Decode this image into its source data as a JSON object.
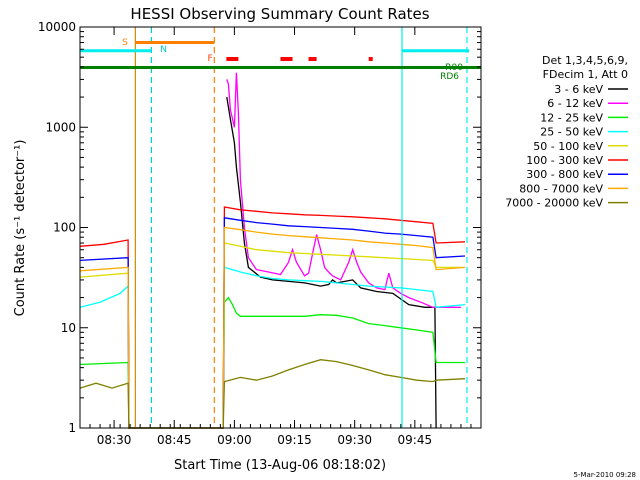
{
  "chart_data": {
    "type": "line",
    "title": "HESSI Observing Summary Count Rates",
    "xlabel": "Start Time (13-Aug-06 08:18:02)",
    "ylabel": "Count Rate (s⁻¹ detector⁻¹)",
    "yscale": "log",
    "ylim": [
      1,
      10000
    ],
    "xlim_minutes": [
      0,
      100
    ],
    "x_ticks": [
      "08:30",
      "08:45",
      "09:00",
      "09:15",
      "09:30",
      "09:45"
    ],
    "y_ticks": [
      "1",
      "10",
      "100",
      "1000",
      "10000"
    ],
    "legend_header": [
      "Det 1,3,4,5,6,9,",
      "FDecim 1, Att 0"
    ],
    "timestamp": "5-Mar-2010 09:28",
    "series": [
      {
        "name": "3 - 6 keV",
        "color": "#000000",
        "points": [
          [
            36.6,
            2000
          ],
          [
            37.5,
            1200
          ],
          [
            38.5,
            700
          ],
          [
            39,
            400
          ],
          [
            40,
            180
          ],
          [
            41,
            70
          ],
          [
            42,
            40
          ],
          [
            45,
            32
          ],
          [
            48,
            30
          ],
          [
            52,
            29
          ],
          [
            56,
            28
          ],
          [
            60,
            26
          ],
          [
            62,
            27
          ],
          [
            63,
            30
          ],
          [
            64,
            28
          ],
          [
            68,
            30
          ],
          [
            70,
            25
          ],
          [
            74,
            23
          ],
          [
            78,
            22
          ],
          [
            82,
            17
          ],
          [
            86,
            16
          ],
          [
            88.5,
            16
          ],
          [
            88.8,
            1
          ]
        ]
      },
      {
        "name": "6 - 12 keV",
        "color": "#ff00ff",
        "points": [
          [
            36.6,
            3000
          ],
          [
            37,
            2700
          ],
          [
            37.5,
            1500
          ],
          [
            38.5,
            1000
          ],
          [
            39,
            3500
          ],
          [
            39.5,
            1400
          ],
          [
            40,
            300
          ],
          [
            41,
            100
          ],
          [
            42,
            50
          ],
          [
            44,
            38
          ],
          [
            47,
            36
          ],
          [
            50,
            34
          ],
          [
            52,
            45
          ],
          [
            53,
            60
          ],
          [
            54,
            45
          ],
          [
            56,
            33
          ],
          [
            57,
            35
          ],
          [
            58,
            55
          ],
          [
            59,
            85
          ],
          [
            60,
            60
          ],
          [
            61,
            40
          ],
          [
            62,
            36
          ],
          [
            63,
            33
          ],
          [
            65,
            30
          ],
          [
            67,
            45
          ],
          [
            68,
            60
          ],
          [
            69,
            45
          ],
          [
            70,
            36
          ],
          [
            72,
            28
          ],
          [
            74,
            25
          ],
          [
            76,
            24
          ],
          [
            77,
            35
          ],
          [
            78,
            25
          ],
          [
            80,
            22
          ],
          [
            82,
            20
          ],
          [
            85,
            18
          ],
          [
            88,
            16
          ],
          [
            88.8,
            16
          ],
          [
            95,
            16
          ]
        ]
      },
      {
        "name": "12 - 25 keV",
        "color": "#00ee00",
        "points": [
          [
            0,
            4.3
          ],
          [
            12,
            4.5
          ],
          [
            12.2,
            1
          ],
          [
            35.7,
            1
          ],
          [
            36,
            18
          ],
          [
            37,
            20
          ],
          [
            38,
            17
          ],
          [
            39,
            14
          ],
          [
            40,
            13
          ],
          [
            44,
            13
          ],
          [
            50,
            13
          ],
          [
            56,
            13
          ],
          [
            60,
            13.5
          ],
          [
            64,
            13.3
          ],
          [
            68,
            12.5
          ],
          [
            72,
            11
          ],
          [
            76,
            10.5
          ],
          [
            80,
            10
          ],
          [
            84,
            9.5
          ],
          [
            88,
            9
          ],
          [
            88.8,
            4.5
          ],
          [
            96,
            4.5
          ]
        ]
      },
      {
        "name": "25 - 50 keV",
        "color": "#00ffff",
        "points": [
          [
            0,
            16
          ],
          [
            5,
            18
          ],
          [
            10,
            22
          ],
          [
            12,
            26
          ],
          [
            12.2,
            1
          ],
          [
            35.7,
            1
          ],
          [
            36,
            40
          ],
          [
            38,
            38
          ],
          [
            40,
            36
          ],
          [
            44,
            33
          ],
          [
            48,
            31
          ],
          [
            52,
            30
          ],
          [
            56,
            29.5
          ],
          [
            60,
            29
          ],
          [
            64,
            28
          ],
          [
            68,
            27
          ],
          [
            72,
            26
          ],
          [
            76,
            25.5
          ],
          [
            80,
            25
          ],
          [
            84,
            24
          ],
          [
            88,
            23
          ],
          [
            88.8,
            16
          ],
          [
            96,
            17
          ]
        ]
      },
      {
        "name": "50 - 100 keV",
        "color": "#dddd00",
        "points": [
          [
            0,
            32
          ],
          [
            12,
            35
          ],
          [
            12.2,
            1
          ],
          [
            35.7,
            1
          ],
          [
            36,
            70
          ],
          [
            40,
            65
          ],
          [
            44,
            60
          ],
          [
            48,
            58
          ],
          [
            52,
            56
          ],
          [
            56,
            55
          ],
          [
            60,
            54
          ],
          [
            64,
            53
          ],
          [
            68,
            52
          ],
          [
            72,
            51
          ],
          [
            76,
            50
          ],
          [
            80,
            49
          ],
          [
            84,
            48
          ],
          [
            88,
            47
          ],
          [
            88.8,
            40
          ],
          [
            96,
            40
          ]
        ]
      },
      {
        "name": "100 - 300 keV",
        "color": "#ff0000",
        "points": [
          [
            0,
            65
          ],
          [
            6,
            68
          ],
          [
            12,
            75
          ],
          [
            12.2,
            1
          ],
          [
            35.7,
            1
          ],
          [
            36,
            160
          ],
          [
            40,
            150
          ],
          [
            44,
            145
          ],
          [
            48,
            140
          ],
          [
            52,
            137
          ],
          [
            56,
            134
          ],
          [
            60,
            132
          ],
          [
            64,
            130
          ],
          [
            68,
            128
          ],
          [
            72,
            125
          ],
          [
            76,
            122
          ],
          [
            80,
            118
          ],
          [
            84,
            114
          ],
          [
            88,
            110
          ],
          [
            88.8,
            70
          ],
          [
            96,
            72
          ]
        ]
      },
      {
        "name": "300 - 800 keV",
        "color": "#0000ff",
        "points": [
          [
            0,
            47
          ],
          [
            12,
            50
          ],
          [
            12.2,
            1
          ],
          [
            35.7,
            1
          ],
          [
            36,
            125
          ],
          [
            40,
            118
          ],
          [
            44,
            112
          ],
          [
            48,
            108
          ],
          [
            52,
            104
          ],
          [
            56,
            102
          ],
          [
            60,
            100
          ],
          [
            64,
            98
          ],
          [
            68,
            96
          ],
          [
            72,
            92
          ],
          [
            76,
            88
          ],
          [
            80,
            86
          ],
          [
            84,
            83
          ],
          [
            88,
            80
          ],
          [
            88.8,
            50
          ],
          [
            96,
            52
          ]
        ]
      },
      {
        "name": "800 - 7000 keV",
        "color": "#ffaa00",
        "points": [
          [
            0,
            37
          ],
          [
            12,
            40
          ],
          [
            12.2,
            1
          ],
          [
            35.7,
            1
          ],
          [
            36,
            100
          ],
          [
            40,
            95
          ],
          [
            44,
            90
          ],
          [
            48,
            86
          ],
          [
            52,
            83
          ],
          [
            56,
            81
          ],
          [
            60,
            79
          ],
          [
            64,
            77
          ],
          [
            68,
            75
          ],
          [
            72,
            72
          ],
          [
            76,
            70
          ],
          [
            80,
            68
          ],
          [
            84,
            66
          ],
          [
            88,
            63
          ],
          [
            88.8,
            38
          ],
          [
            96,
            40
          ]
        ]
      },
      {
        "name": "7000 - 20000 keV",
        "color": "#808000",
        "points": [
          [
            0,
            2.5
          ],
          [
            4,
            2.8
          ],
          [
            8,
            2.5
          ],
          [
            12,
            2.8
          ],
          [
            12.2,
            1
          ],
          [
            35.7,
            1
          ],
          [
            36,
            2.9
          ],
          [
            40,
            3.2
          ],
          [
            44,
            3.0
          ],
          [
            48,
            3.3
          ],
          [
            52,
            3.8
          ],
          [
            56,
            4.3
          ],
          [
            60,
            4.8
          ],
          [
            64,
            4.6
          ],
          [
            68,
            4.2
          ],
          [
            72,
            3.8
          ],
          [
            76,
            3.4
          ],
          [
            80,
            3.2
          ],
          [
            84,
            3.0
          ],
          [
            88,
            2.9
          ],
          [
            88.8,
            3.0
          ],
          [
            96,
            3.1
          ]
        ]
      }
    ],
    "status_lines": [
      {
        "label": "S",
        "color": "#ff8000",
        "x_start": 13.8,
        "x_end": 33.5,
        "y": 7000
      },
      {
        "label": "N",
        "color": "#00eeee",
        "x_start": 0,
        "x_end": 17.8,
        "y": 5800
      },
      {
        "label": "N",
        "color": "#00eeee",
        "x_start": 80.3,
        "x_end": 97,
        "y": 5800
      },
      {
        "label": "RD6",
        "color": "#008000",
        "x_start": 0,
        "x_end": 100,
        "y": 3950
      },
      {
        "label": "R00",
        "color": "#008000",
        "x_start": 0,
        "x_end": 100,
        "y": 3950
      }
    ],
    "flare_segments": [
      [
        36.5,
        39.5
      ],
      [
        50,
        53
      ],
      [
        57,
        59
      ],
      [
        72,
        73
      ]
    ],
    "vertical_markers": [
      {
        "x": 13.8,
        "color": "#cc8800",
        "style": "solid"
      },
      {
        "x": 17.8,
        "color": "#00cccc",
        "style": "dashed"
      },
      {
        "x": 33.5,
        "color": "#ff8000",
        "style": "dashed"
      },
      {
        "x": 80.3,
        "color": "#00eeee",
        "style": "solid"
      },
      {
        "x": 96.5,
        "color": "#00eeee",
        "style": "dashed"
      }
    ],
    "markers_text": [
      "S",
      "N",
      "F",
      "R00",
      "RD6"
    ]
  }
}
